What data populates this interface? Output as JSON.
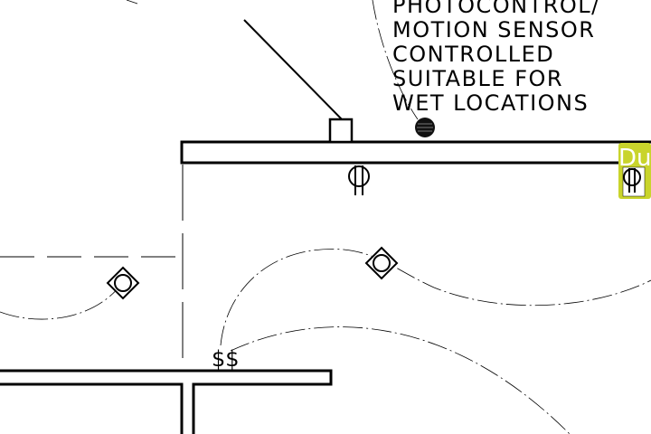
{
  "note": {
    "lines": [
      "PHOTOCONTROL/",
      "MOTION SENSOR",
      "CONTROLLED",
      "SUITABLE FOR",
      "WET LOCATIONS"
    ]
  },
  "switch_symbol": "$$",
  "highlight_label": "Du",
  "colors": {
    "background": "#ffffff",
    "linework": "#000000",
    "highlight_fill": "#c9d42c",
    "highlight_text": "#ffffff"
  }
}
